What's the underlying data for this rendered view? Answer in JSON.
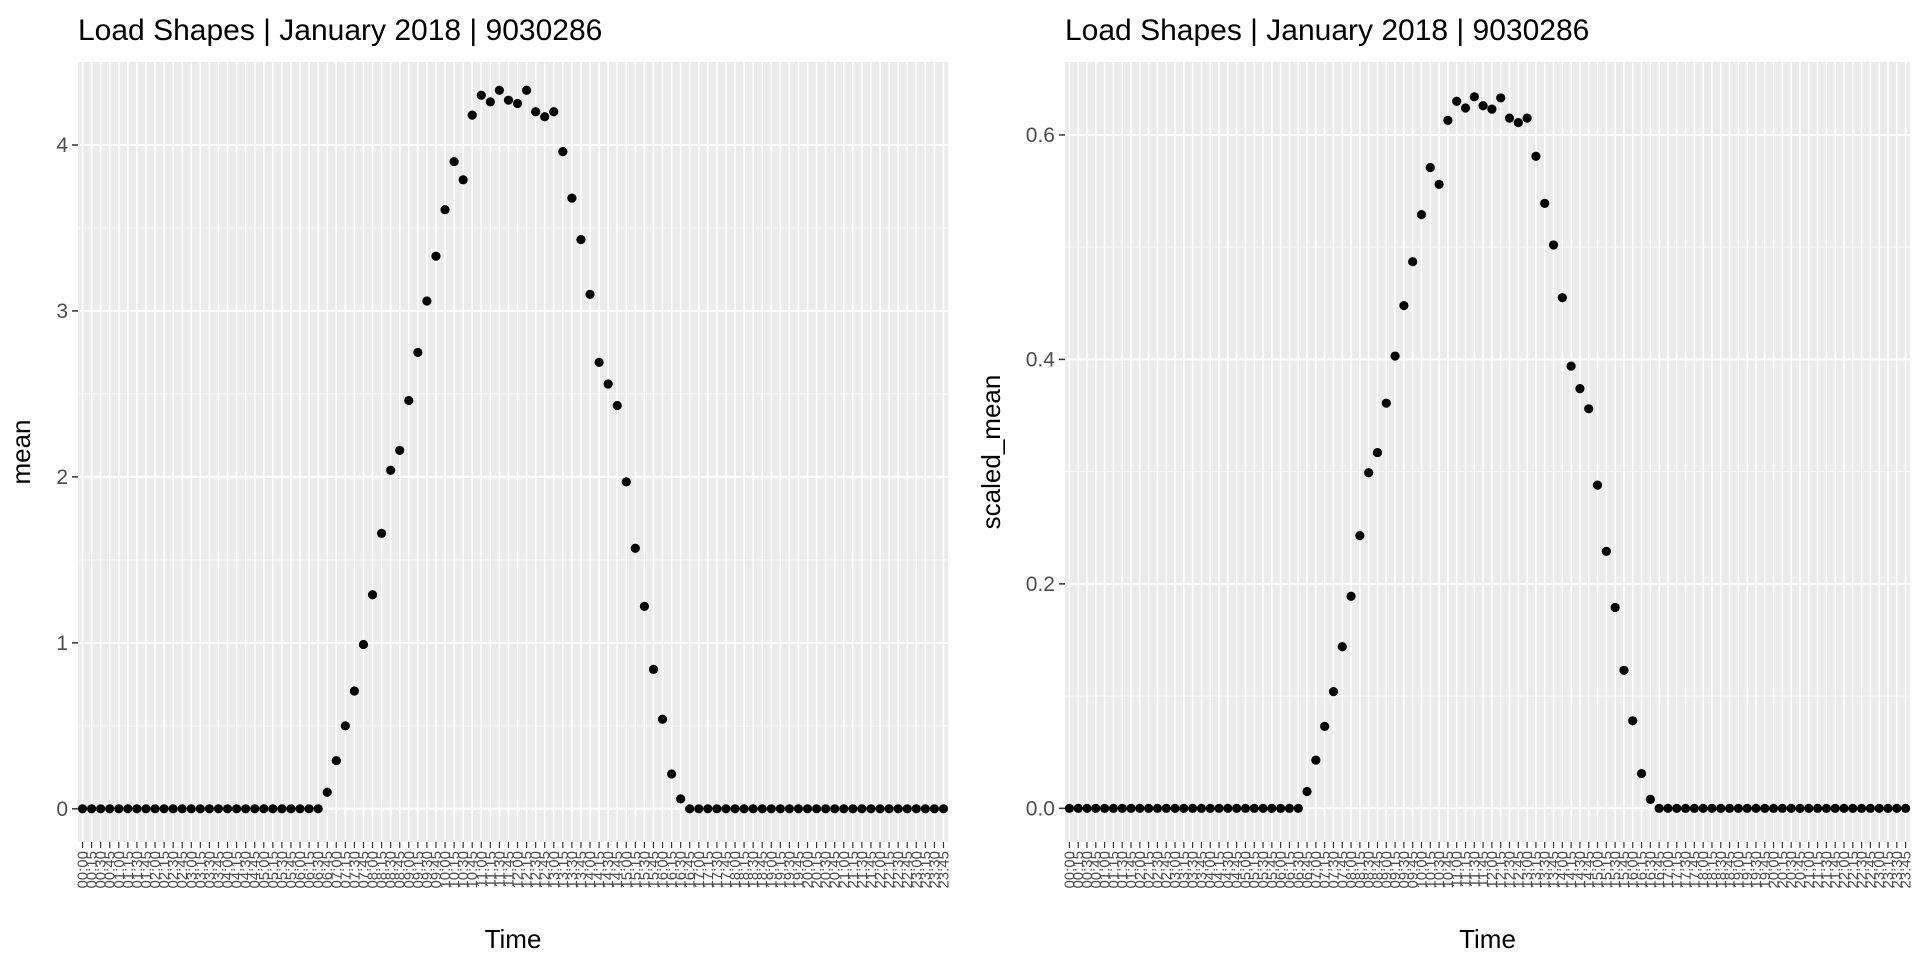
{
  "chart_data": [
    {
      "type": "scatter",
      "title": "Load Shapes | January 2018 |  9030286",
      "xlabel": "Time",
      "ylabel": "mean",
      "ylim": [
        -0.2,
        4.5
      ],
      "yticks": [
        0,
        1,
        2,
        3,
        4
      ],
      "grid": true,
      "legend": "none",
      "x": [
        "00:00",
        "00:15",
        "00:30",
        "00:45",
        "01:00",
        "01:15",
        "01:30",
        "01:45",
        "02:00",
        "02:15",
        "02:30",
        "02:45",
        "03:00",
        "03:15",
        "03:30",
        "03:45",
        "04:00",
        "04:15",
        "04:30",
        "04:45",
        "05:00",
        "05:15",
        "05:30",
        "05:45",
        "06:00",
        "06:15",
        "06:30",
        "06:45",
        "07:00",
        "07:15",
        "07:30",
        "07:45",
        "08:00",
        "08:15",
        "08:30",
        "08:45",
        "09:00",
        "09:15",
        "09:30",
        "09:45",
        "10:00",
        "10:15",
        "10:30",
        "10:45",
        "11:00",
        "11:15",
        "11:30",
        "11:45",
        "12:00",
        "12:15",
        "12:30",
        "12:45",
        "13:00",
        "13:15",
        "13:30",
        "13:45",
        "14:00",
        "14:15",
        "14:30",
        "14:45",
        "15:00",
        "15:15",
        "15:30",
        "15:45",
        "16:00",
        "16:15",
        "16:30",
        "16:45",
        "17:00",
        "17:15",
        "17:30",
        "17:45",
        "18:00",
        "18:15",
        "18:30",
        "18:45",
        "19:00",
        "19:15",
        "19:30",
        "19:45",
        "20:00",
        "20:15",
        "20:30",
        "20:45",
        "21:00",
        "21:15",
        "21:30",
        "21:45",
        "22:00",
        "22:15",
        "22:30",
        "22:45",
        "23:00",
        "23:15",
        "23:30",
        "23:45"
      ],
      "values": [
        0,
        0,
        0,
        0,
        0,
        0,
        0,
        0,
        0,
        0,
        0,
        0,
        0,
        0,
        0,
        0,
        0,
        0,
        0,
        0,
        0,
        0,
        0,
        0,
        0,
        0,
        0,
        0.1,
        0.29,
        0.5,
        0.71,
        0.99,
        1.29,
        1.66,
        2.04,
        2.16,
        2.46,
        2.75,
        3.06,
        3.33,
        3.61,
        3.9,
        3.79,
        4.18,
        4.3,
        4.26,
        4.33,
        4.27,
        4.25,
        4.33,
        4.2,
        4.17,
        4.2,
        3.96,
        3.68,
        3.43,
        3.1,
        2.69,
        2.56,
        2.43,
        1.97,
        1.57,
        1.22,
        0.84,
        0.54,
        0.21,
        0.06,
        0,
        0,
        0,
        0,
        0,
        0,
        0,
        0,
        0,
        0,
        0,
        0,
        0,
        0,
        0,
        0,
        0,
        0,
        0,
        0,
        0,
        0,
        0,
        0,
        0,
        0,
        0,
        0,
        0
      ]
    },
    {
      "type": "scatter",
      "title": "Load Shapes | January 2018 |  9030286",
      "xlabel": "Time",
      "ylabel": "scaled_mean",
      "ylim": [
        -0.03,
        0.665
      ],
      "yticks": [
        0.0,
        0.2,
        0.4,
        0.6
      ],
      "ytick_labels": [
        "0.0",
        "0.2",
        "0.4",
        "0.6"
      ],
      "grid": true,
      "legend": "none",
      "x": [
        "00:00",
        "00:15",
        "00:30",
        "00:45",
        "01:00",
        "01:15",
        "01:30",
        "01:45",
        "02:00",
        "02:15",
        "02:30",
        "02:45",
        "03:00",
        "03:15",
        "03:30",
        "03:45",
        "04:00",
        "04:15",
        "04:30",
        "04:45",
        "05:00",
        "05:15",
        "05:30",
        "05:45",
        "06:00",
        "06:15",
        "06:30",
        "06:45",
        "07:00",
        "07:15",
        "07:30",
        "07:45",
        "08:00",
        "08:15",
        "08:30",
        "08:45",
        "09:00",
        "09:15",
        "09:30",
        "09:45",
        "10:00",
        "10:15",
        "10:30",
        "10:45",
        "11:00",
        "11:15",
        "11:30",
        "11:45",
        "12:00",
        "12:15",
        "12:30",
        "12:45",
        "13:00",
        "13:15",
        "13:30",
        "13:45",
        "14:00",
        "14:15",
        "14:30",
        "14:45",
        "15:00",
        "15:15",
        "15:30",
        "15:45",
        "16:00",
        "16:15",
        "16:30",
        "16:45",
        "17:00",
        "17:15",
        "17:30",
        "17:45",
        "18:00",
        "18:15",
        "18:30",
        "18:45",
        "19:00",
        "19:15",
        "19:30",
        "19:45",
        "20:00",
        "20:15",
        "20:30",
        "20:45",
        "21:00",
        "21:15",
        "21:30",
        "21:45",
        "22:00",
        "22:15",
        "22:30",
        "22:45",
        "23:00",
        "23:15",
        "23:30",
        "23:45"
      ],
      "values": [
        0,
        0,
        0,
        0,
        0,
        0,
        0,
        0,
        0,
        0,
        0,
        0,
        0,
        0,
        0,
        0,
        0,
        0,
        0,
        0,
        0,
        0,
        0,
        0,
        0,
        0,
        0,
        0.015,
        0.043,
        0.073,
        0.104,
        0.144,
        0.189,
        0.243,
        0.299,
        0.317,
        0.361,
        0.403,
        0.448,
        0.487,
        0.529,
        0.571,
        0.556,
        0.613,
        0.63,
        0.624,
        0.634,
        0.626,
        0.623,
        0.633,
        0.615,
        0.611,
        0.615,
        0.581,
        0.539,
        0.502,
        0.455,
        0.394,
        0.374,
        0.356,
        0.288,
        0.229,
        0.179,
        0.123,
        0.078,
        0.031,
        0.008,
        0,
        0,
        0,
        0,
        0,
        0,
        0,
        0,
        0,
        0,
        0,
        0,
        0,
        0,
        0,
        0,
        0,
        0,
        0,
        0,
        0,
        0,
        0,
        0,
        0,
        0,
        0,
        0,
        0
      ]
    }
  ]
}
